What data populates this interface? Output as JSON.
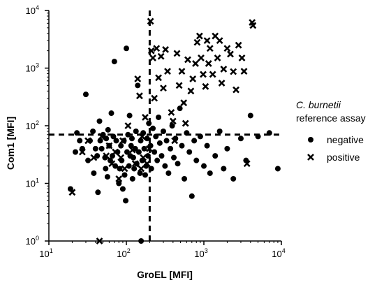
{
  "chart_data": {
    "type": "scatter",
    "title": "",
    "xlabel": "GroEL [MFI]",
    "ylabel": "Com1 [MFI]",
    "x_scale": "log",
    "y_scale": "log",
    "xlim": [
      10,
      10000
    ],
    "ylim": [
      1,
      10000
    ],
    "x_ticks": [
      {
        "base": "10",
        "exp": "1",
        "value": 10
      },
      {
        "base": "10",
        "exp": "2",
        "value": 100
      },
      {
        "base": "10",
        "exp": "3",
        "value": 1000
      },
      {
        "base": "10",
        "exp": "4",
        "value": 10000
      }
    ],
    "y_ticks": [
      {
        "base": "10",
        "exp": "0",
        "value": 1
      },
      {
        "base": "10",
        "exp": "1",
        "value": 10
      },
      {
        "base": "10",
        "exp": "2",
        "value": 100
      },
      {
        "base": "10",
        "exp": "3",
        "value": 1000
      },
      {
        "base": "10",
        "exp": "4",
        "value": 10000
      }
    ],
    "cutoffs": {
      "x": 200,
      "y": 70
    },
    "grid": false,
    "legend": {
      "position": "right",
      "title_italic": "C. burnetii",
      "title_rest": "reference assay",
      "negative_label": "negative",
      "positive_label": "positive"
    },
    "series": [
      {
        "name": "negative",
        "marker": "circle",
        "points": [
          [
            19,
            8
          ],
          [
            22,
            35
          ],
          [
            23,
            75
          ],
          [
            25,
            55
          ],
          [
            27,
            40
          ],
          [
            30,
            350
          ],
          [
            32,
            25
          ],
          [
            34,
            55
          ],
          [
            37,
            80
          ],
          [
            38,
            15
          ],
          [
            40,
            40
          ],
          [
            42,
            30
          ],
          [
            43,
            7
          ],
          [
            45,
            120
          ],
          [
            46,
            55
          ],
          [
            48,
            40
          ],
          [
            50,
            70
          ],
          [
            53,
            28
          ],
          [
            54,
            18
          ],
          [
            55,
            60
          ],
          [
            57,
            13
          ],
          [
            58,
            85
          ],
          [
            60,
            45
          ],
          [
            62,
            25
          ],
          [
            64,
            165
          ],
          [
            66,
            30
          ],
          [
            68,
            65
          ],
          [
            70,
            1300
          ],
          [
            72,
            20
          ],
          [
            74,
            55
          ],
          [
            77,
            35
          ],
          [
            80,
            10
          ],
          [
            82,
            18
          ],
          [
            85,
            45
          ],
          [
            87,
            25
          ],
          [
            90,
            8
          ],
          [
            93,
            55
          ],
          [
            95,
            14
          ],
          [
            98,
            5
          ],
          [
            100,
            2200
          ],
          [
            102,
            35
          ],
          [
            105,
            70
          ],
          [
            108,
            20
          ],
          [
            110,
            150
          ],
          [
            112,
            30
          ],
          [
            115,
            45
          ],
          [
            118,
            60
          ],
          [
            120,
            12
          ],
          [
            123,
            28
          ],
          [
            126,
            18
          ],
          [
            130,
            40
          ],
          [
            133,
            80
          ],
          [
            136,
            22
          ],
          [
            140,
            500
          ],
          [
            145,
            35
          ],
          [
            150,
            15
          ],
          [
            153,
            55
          ],
          [
            155,
            1
          ],
          [
            160,
            25
          ],
          [
            165,
            75
          ],
          [
            170,
            40
          ],
          [
            175,
            14
          ],
          [
            180,
            20
          ],
          [
            185,
            60
          ],
          [
            190,
            30
          ],
          [
            195,
            110
          ],
          [
            205,
            45
          ],
          [
            210,
            18
          ],
          [
            220,
            90
          ],
          [
            230,
            35
          ],
          [
            240,
            65
          ],
          [
            250,
            25
          ],
          [
            260,
            140
          ],
          [
            270,
            50
          ],
          [
            285,
            30
          ],
          [
            300,
            80
          ],
          [
            315,
            20
          ],
          [
            330,
            55
          ],
          [
            350,
            15
          ],
          [
            370,
            40
          ],
          [
            390,
            100
          ],
          [
            410,
            28
          ],
          [
            430,
            60
          ],
          [
            460,
            22
          ],
          [
            490,
            200
          ],
          [
            520,
            45
          ],
          [
            560,
            12
          ],
          [
            600,
            75
          ],
          [
            650,
            35
          ],
          [
            700,
            6
          ],
          [
            750,
            55
          ],
          [
            800,
            25
          ],
          [
            900,
            65
          ],
          [
            1000,
            20
          ],
          [
            1100,
            45
          ],
          [
            1200,
            15
          ],
          [
            1400,
            30
          ],
          [
            1600,
            80
          ],
          [
            1800,
            18
          ],
          [
            2000,
            40
          ],
          [
            2400,
            12
          ],
          [
            3000,
            60
          ],
          [
            3500,
            25
          ],
          [
            4000,
            150
          ],
          [
            5000,
            65
          ],
          [
            7000,
            75
          ],
          [
            9000,
            18
          ]
        ]
      },
      {
        "name": "positive",
        "marker": "x",
        "points": [
          [
            20,
            7
          ],
          [
            27,
            35
          ],
          [
            32,
            55
          ],
          [
            38,
            28
          ],
          [
            45,
            1
          ],
          [
            48,
            65
          ],
          [
            55,
            30
          ],
          [
            60,
            45
          ],
          [
            65,
            22
          ],
          [
            72,
            35
          ],
          [
            80,
            12
          ],
          [
            85,
            28
          ],
          [
            90,
            55
          ],
          [
            95,
            18
          ],
          [
            105,
            100
          ],
          [
            120,
            38
          ],
          [
            130,
            22
          ],
          [
            140,
            650
          ],
          [
            148,
            330
          ],
          [
            155,
            18
          ],
          [
            160,
            65
          ],
          [
            165,
            28
          ],
          [
            175,
            140
          ],
          [
            185,
            22
          ],
          [
            198,
            40
          ],
          [
            205,
            6500
          ],
          [
            210,
            2000
          ],
          [
            220,
            1500
          ],
          [
            230,
            300
          ],
          [
            245,
            2200
          ],
          [
            260,
            680
          ],
          [
            280,
            1600
          ],
          [
            300,
            450
          ],
          [
            320,
            2100
          ],
          [
            340,
            880
          ],
          [
            380,
            170
          ],
          [
            400,
            120
          ],
          [
            420,
            55
          ],
          [
            450,
            1800
          ],
          [
            480,
            500
          ],
          [
            520,
            880
          ],
          [
            550,
            250
          ],
          [
            580,
            110
          ],
          [
            620,
            1400
          ],
          [
            680,
            400
          ],
          [
            720,
            650
          ],
          [
            780,
            1200
          ],
          [
            820,
            2800
          ],
          [
            880,
            3600
          ],
          [
            920,
            1500
          ],
          [
            980,
            780
          ],
          [
            1050,
            480
          ],
          [
            1100,
            3000
          ],
          [
            1150,
            1200
          ],
          [
            1200,
            2200
          ],
          [
            1300,
            780
          ],
          [
            1400,
            3600
          ],
          [
            1500,
            1500
          ],
          [
            1600,
            3000
          ],
          [
            1700,
            550
          ],
          [
            1800,
            960
          ],
          [
            2000,
            2200
          ],
          [
            2200,
            1750
          ],
          [
            2400,
            870
          ],
          [
            2600,
            420
          ],
          [
            2800,
            2500
          ],
          [
            3100,
            1500
          ],
          [
            3300,
            880
          ],
          [
            3600,
            22
          ],
          [
            4200,
            6200
          ],
          [
            4300,
            5500
          ]
        ]
      }
    ]
  }
}
